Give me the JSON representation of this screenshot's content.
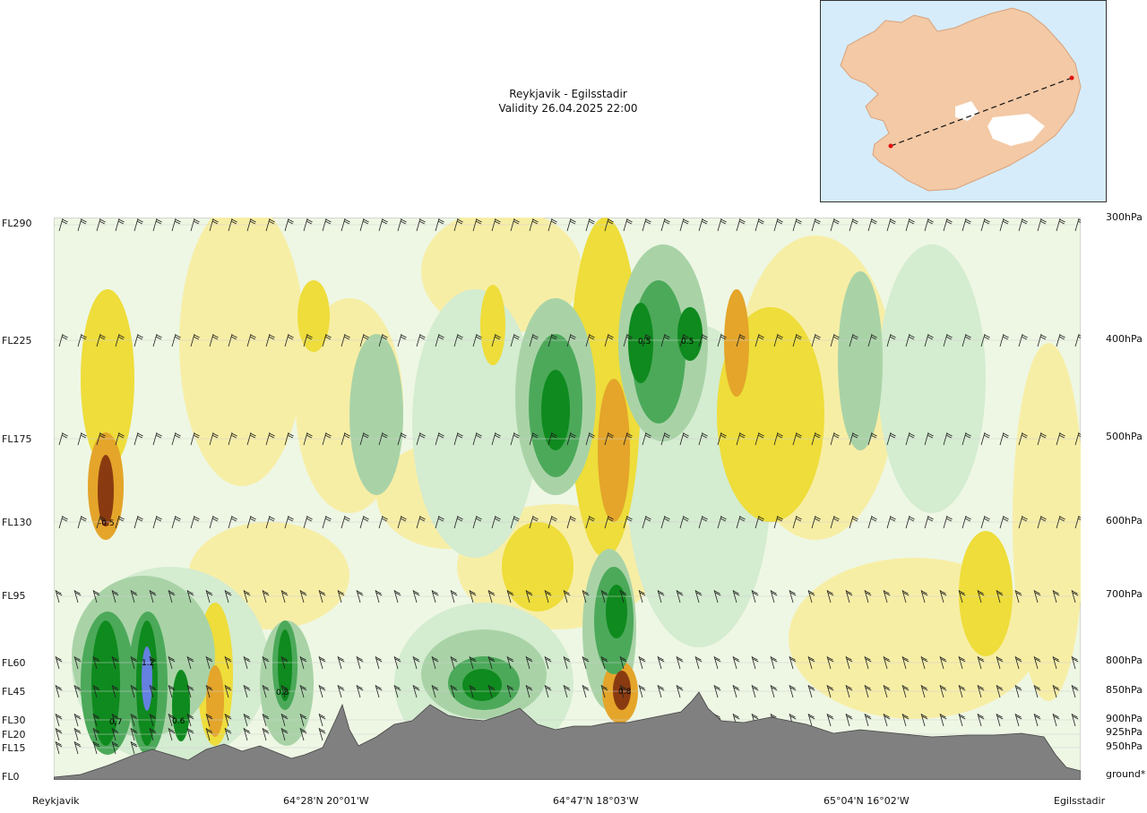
{
  "header": {
    "route": "Reykjavik - Egilsstadir",
    "validity": "Validity 26.04.2025 22:00"
  },
  "map": {
    "route_line_color": "#111111",
    "endpoint_color": "#e01010",
    "land_color": "#f3c9a6",
    "sea_color": "#d6ecfa"
  },
  "chart_data": {
    "type": "heatmap",
    "title": "Reykjavik - Egilsstadir",
    "subtitle": "Validity 26.04.2025 22:00",
    "y_levels_left": [
      "FL290",
      "FL225",
      "FL175",
      "FL130",
      "FL95",
      "FL60",
      "FL45",
      "FL30",
      "FL20",
      "FL15",
      "FL0"
    ],
    "y_levels_right": [
      "300hPa",
      "400hPa",
      "500hPa",
      "600hPa",
      "700hPa",
      "800hPa",
      "850hPa",
      "900hPa",
      "925hPa",
      "950hPa",
      "ground*"
    ],
    "x_labels": [
      "Reykjavik",
      "64°28'N 20°01'W",
      "64°47'N 18°03'W",
      "65°04'N 16°02'W",
      "Egilsstadir"
    ],
    "annotations": [
      "-0.5",
      "1.2",
      "0.7",
      "0.6",
      "0.8",
      "0.8",
      "0.5",
      "0.5"
    ],
    "colors": {
      "positive_strong": "#0f8a1e",
      "positive_mid": "#4ca95a",
      "positive_light": "#a9d3a7",
      "positive_faint": "#d4ecd0",
      "max": "#6480e0",
      "negative_faint": "#f7eea6",
      "negative_light": "#eedd3a",
      "negative_mid": "#e4a52a",
      "negative_strong": "#8a3a10",
      "terrain": "#808080"
    },
    "grid": true
  }
}
